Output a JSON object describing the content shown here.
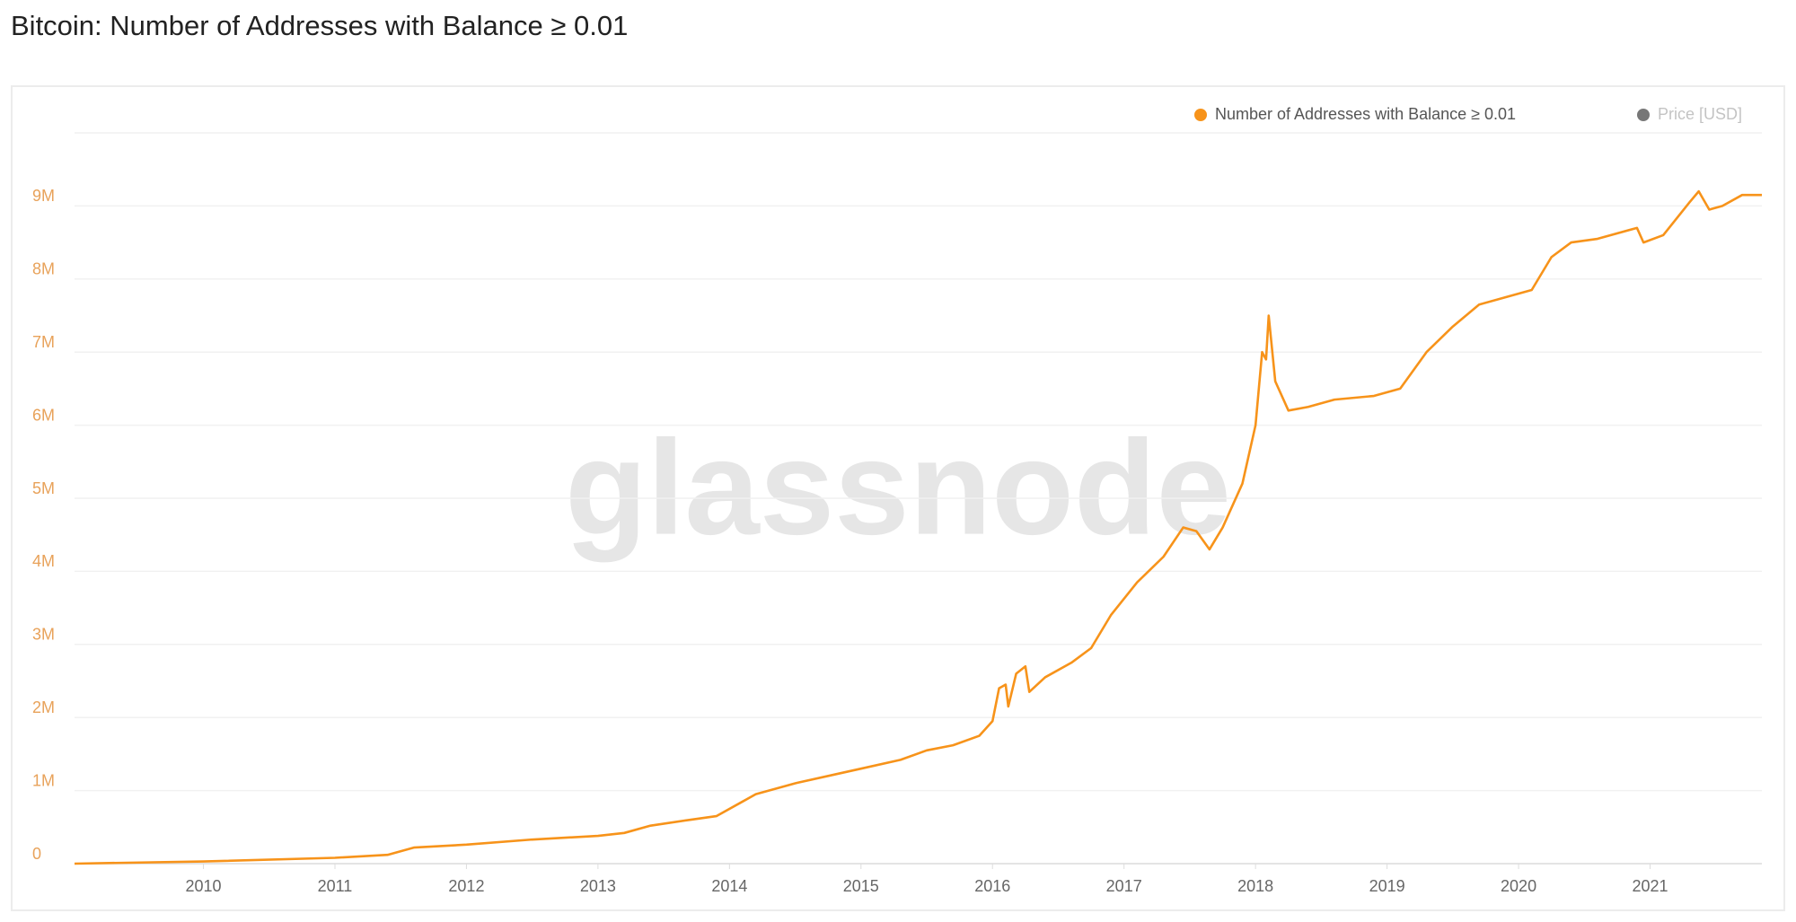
{
  "chart_data": {
    "type": "line",
    "title": "Bitcoin: Number of Addresses with Balance ≥ 0.01",
    "watermark": "glassnode",
    "x": [
      2009.02,
      2010,
      2011,
      2011.4,
      2011.6,
      2012,
      2012.5,
      2013,
      2013.2,
      2013.4,
      2013.7,
      2013.9,
      2014.1,
      2014.2,
      2014.5,
      2014.8,
      2015,
      2015.3,
      2015.5,
      2015.7,
      2015.9,
      2016,
      2016.05,
      2016.1,
      2016.12,
      2016.18,
      2016.25,
      2016.28,
      2016.4,
      2016.6,
      2016.75,
      2016.9,
      2017.1,
      2017.3,
      2017.45,
      2017.55,
      2017.65,
      2017.75,
      2017.9,
      2018.0,
      2018.05,
      2018.08,
      2018.1,
      2018.15,
      2018.25,
      2018.4,
      2018.6,
      2018.9,
      2019.1,
      2019.3,
      2019.5,
      2019.7,
      2019.9,
      2020.1,
      2020.25,
      2020.4,
      2020.6,
      2020.9,
      2020.95,
      2021.1,
      2021.3,
      2021.37,
      2021.45,
      2021.55,
      2021.7,
      2021.85
    ],
    "series": [
      {
        "name": "Number of Addresses with Balance ≥ 0.01",
        "color": "#f7931a",
        "values": [
          0,
          30000,
          80000,
          120000,
          220000,
          260000,
          330000,
          380000,
          420000,
          520000,
          600000,
          650000,
          850000,
          950000,
          1100000,
          1220000,
          1300000,
          1420000,
          1550000,
          1620000,
          1750000,
          1950000,
          2400000,
          2450000,
          2150000,
          2600000,
          2700000,
          2350000,
          2550000,
          2750000,
          2950000,
          3400000,
          3850000,
          4200000,
          4600000,
          4550000,
          4300000,
          4600000,
          5200000,
          6000000,
          7000000,
          6900000,
          7500000,
          6600000,
          6200000,
          6250000,
          6350000,
          6400000,
          6500000,
          7000000,
          7350000,
          7650000,
          7750000,
          7850000,
          8300000,
          8500000,
          8550000,
          8700000,
          8500000,
          8600000,
          9050000,
          9200000,
          8950000,
          9000000,
          9150000,
          9150000
        ]
      },
      {
        "name": "Price [USD]",
        "color": "#777777",
        "visible": false,
        "values": [
          null,
          null,
          null,
          null,
          null,
          null,
          null,
          null,
          null,
          null,
          null,
          null,
          null,
          null,
          null,
          null,
          null,
          null,
          null,
          null,
          null,
          null,
          null,
          null,
          null,
          null,
          null,
          null,
          null,
          null,
          null,
          null,
          null,
          null,
          null,
          null,
          null,
          null,
          null,
          null,
          null,
          null,
          null,
          null,
          null,
          null,
          null,
          null,
          null,
          null,
          null,
          null,
          null,
          null,
          null,
          null,
          null,
          null,
          null,
          null,
          null,
          null,
          null,
          null,
          null,
          null
        ]
      }
    ],
    "xlim": [
      2009.02,
      2021.85
    ],
    "xticks": [
      2010,
      2011,
      2012,
      2013,
      2014,
      2015,
      2016,
      2017,
      2018,
      2019,
      2020,
      2021
    ],
    "ylim": [
      0,
      10000000
    ],
    "yticks": [
      0,
      {
        "value": 1000000,
        "label": "1M"
      },
      {
        "value": 2000000,
        "label": "2M"
      },
      {
        "value": 3000000,
        "label": "3M"
      },
      {
        "value": 4000000,
        "label": "4M"
      },
      {
        "value": 5000000,
        "label": "5M"
      },
      {
        "value": 6000000,
        "label": "6M"
      },
      {
        "value": 7000000,
        "label": "7M"
      },
      {
        "value": 8000000,
        "label": "8M"
      },
      {
        "value": 9000000,
        "label": "9M"
      }
    ],
    "grid": true,
    "legend": "top-right"
  }
}
